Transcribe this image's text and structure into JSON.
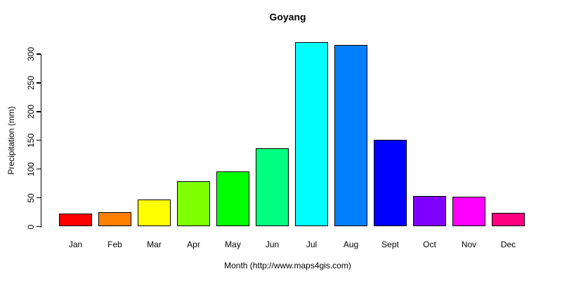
{
  "chart_data": {
    "type": "bar",
    "title": "Goyang",
    "xlabel": "Month (http://www.maps4gis.com)",
    "ylabel": "Precipitation (mm)",
    "categories": [
      "Jan",
      "Feb",
      "Mar",
      "Apr",
      "May",
      "Jun",
      "Jul",
      "Aug",
      "Sept",
      "Oct",
      "Nov",
      "Dec"
    ],
    "values": [
      23,
      25,
      47,
      79,
      96,
      136,
      321,
      316,
      151,
      53,
      52,
      24
    ],
    "bar_colors": [
      "#FF0000",
      "#FF8000",
      "#FFFF00",
      "#80FF00",
      "#00FF00",
      "#00FF80",
      "#00FFFF",
      "#0080FF",
      "#0000FF",
      "#8000FF",
      "#FF00FF",
      "#FF0080"
    ],
    "bar_border_color": "#000000",
    "y_ticks": [
      0,
      50,
      100,
      150,
      200,
      250,
      300
    ],
    "ylim": [
      0,
      335
    ],
    "grid": false,
    "legend": false,
    "background": "#FFFFFF",
    "axis_color": "#000000"
  }
}
